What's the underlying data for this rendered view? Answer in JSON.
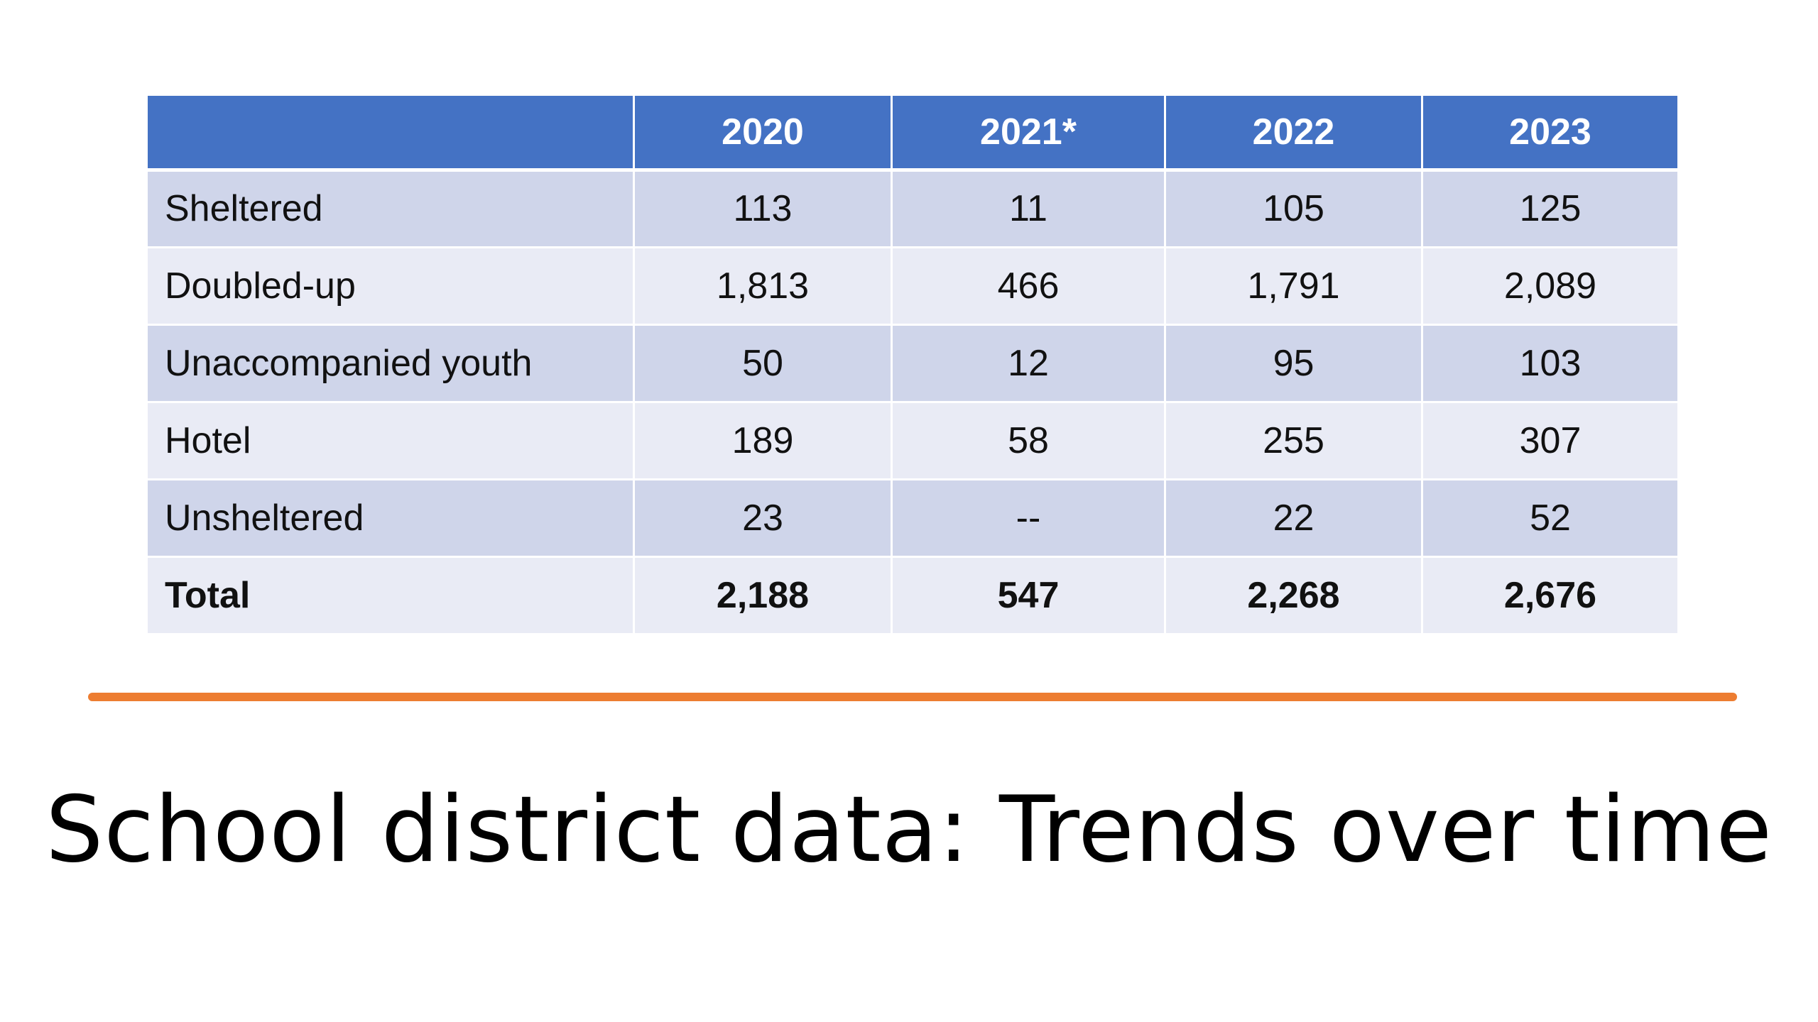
{
  "slide": {
    "title": "School district data: Trends over time",
    "colors": {
      "header_bg": "#4472c4",
      "row_odd_bg": "#cfd5ea",
      "row_even_bg": "#e9ebf5",
      "divider": "#ed7d31"
    }
  },
  "table": {
    "headers": [
      "",
      "2020",
      "2021*",
      "2022",
      "2023"
    ],
    "rows": [
      {
        "label": "Sheltered",
        "values": [
          "113",
          "11",
          "105",
          "125"
        ]
      },
      {
        "label": "Doubled-up",
        "values": [
          "1,813",
          "466",
          "1,791",
          "2,089"
        ]
      },
      {
        "label": "Unaccompanied youth",
        "values": [
          "50",
          "12",
          "95",
          "103"
        ]
      },
      {
        "label": "Hotel",
        "values": [
          "189",
          "58",
          "255",
          "307"
        ]
      },
      {
        "label": "Unsheltered",
        "values": [
          "23",
          "--",
          "22",
          "52"
        ]
      },
      {
        "label": "Total",
        "values": [
          "2,188",
          "547",
          "2,268",
          "2,676"
        ]
      }
    ]
  }
}
